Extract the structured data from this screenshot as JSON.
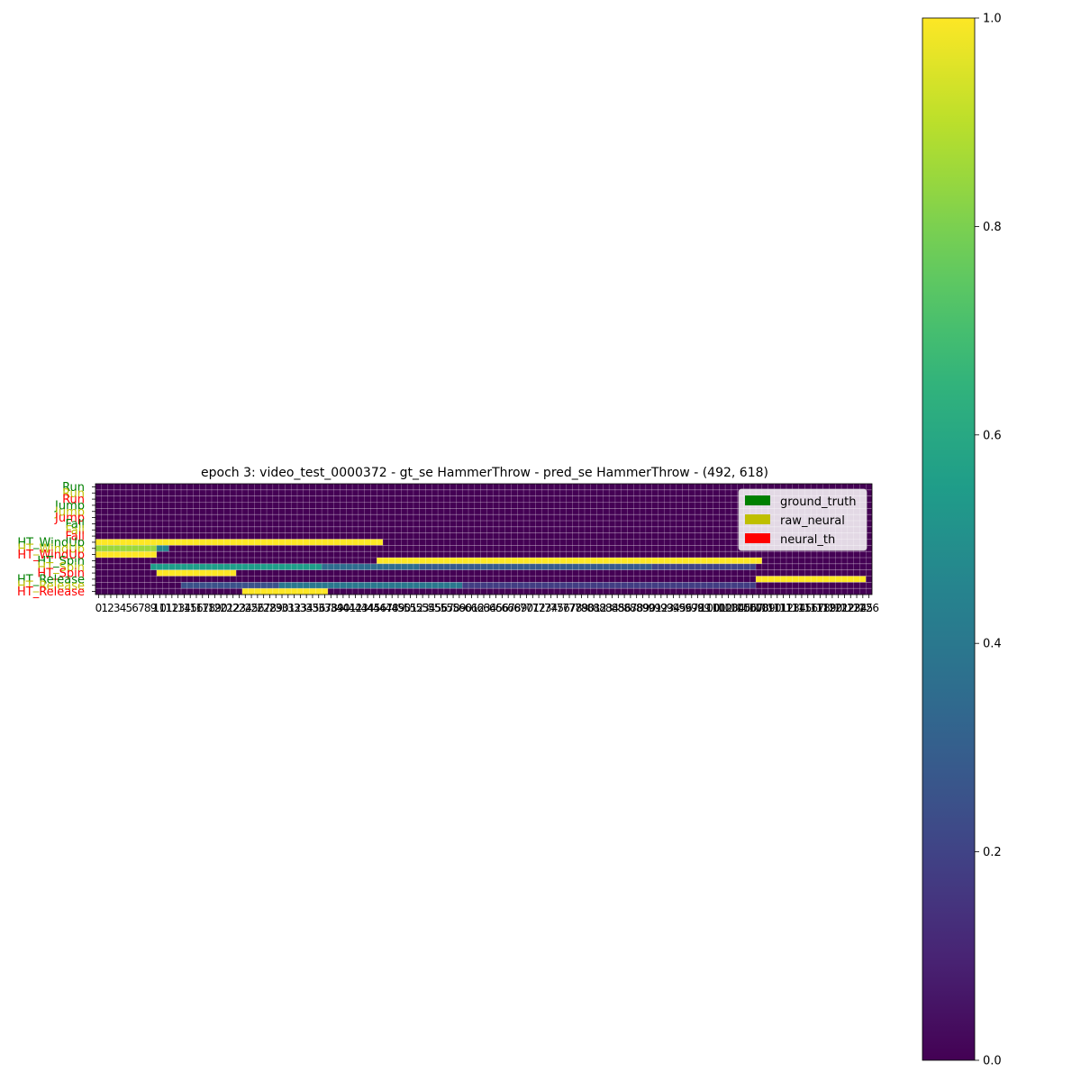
{
  "chart_data": {
    "type": "heatmap",
    "title": "epoch 3: video_test_0000372 - gt_se HammerThrow - pred_se HammerThrow - (492, 618)",
    "xlabel": "",
    "ylabel": "",
    "x_ticks": {
      "start": 0,
      "end": 126,
      "step": 1
    },
    "rows": [
      {
        "label": "Run",
        "source": "ground_truth"
      },
      {
        "label": "Run",
        "source": "raw_neural"
      },
      {
        "label": "Run",
        "source": "neural_th"
      },
      {
        "label": "Jump",
        "source": "ground_truth"
      },
      {
        "label": "Jump",
        "source": "raw_neural"
      },
      {
        "label": "Jump",
        "source": "neural_th"
      },
      {
        "label": "Fall",
        "source": "ground_truth"
      },
      {
        "label": "Fall",
        "source": "raw_neural"
      },
      {
        "label": "Fall",
        "source": "neural_th"
      },
      {
        "label": "HT_WindUp",
        "source": "ground_truth"
      },
      {
        "label": "HT_WindUp",
        "source": "raw_neural"
      },
      {
        "label": "HT_WindUp",
        "source": "neural_th"
      },
      {
        "label": "HT_Spin",
        "source": "ground_truth"
      },
      {
        "label": "HT_Spin",
        "source": "raw_neural"
      },
      {
        "label": "HT_Spin",
        "source": "neural_th"
      },
      {
        "label": "HT_Release",
        "source": "ground_truth"
      },
      {
        "label": "HT_Release",
        "source": "raw_neural"
      },
      {
        "label": "HT_Release",
        "source": "neural_th"
      }
    ],
    "segments": [
      {
        "row": 9,
        "from": 0,
        "to": 47,
        "value": 1.0
      },
      {
        "row": 10,
        "from": 0,
        "to": 10,
        "value": 0.85
      },
      {
        "row": 10,
        "from": 10,
        "to": 12,
        "value": 0.45
      },
      {
        "row": 11,
        "from": 0,
        "to": 10,
        "value": 1.0
      },
      {
        "row": 12,
        "from": 46,
        "to": 109,
        "value": 1.0
      },
      {
        "row": 13,
        "from": 9,
        "to": 37,
        "value": 0.55
      },
      {
        "row": 13,
        "from": 37,
        "to": 53,
        "value": 0.35
      },
      {
        "row": 13,
        "from": 53,
        "to": 91,
        "value": 0.28
      },
      {
        "row": 13,
        "from": 91,
        "to": 108,
        "value": 0.2
      },
      {
        "row": 14,
        "from": 10,
        "to": 23,
        "value": 1.0
      },
      {
        "row": 15,
        "from": 108,
        "to": 126,
        "value": 1.0
      },
      {
        "row": 16,
        "from": 14,
        "to": 30,
        "value": 0.25
      },
      {
        "row": 16,
        "from": 30,
        "to": 60,
        "value": 0.4
      },
      {
        "row": 16,
        "from": 60,
        "to": 108,
        "value": 0.18
      },
      {
        "row": 17,
        "from": 24,
        "to": 38,
        "value": 1.0
      }
    ],
    "background_value": 0.0,
    "colorscale": "viridis",
    "colorbar": {
      "min": 0.0,
      "max": 1.0,
      "ticks": [
        "0.0",
        "0.2",
        "0.4",
        "0.6",
        "0.8",
        "1.0"
      ]
    },
    "legend": {
      "placement": "top-right",
      "entries": [
        {
          "label": "ground_truth",
          "color": "#008000"
        },
        {
          "label": "raw_neural",
          "color": "#bfbf00"
        },
        {
          "label": "neural_th",
          "color": "#ff0000"
        }
      ]
    },
    "row_label_colors": {
      "ground_truth": "#008000",
      "raw_neural": "#bfbf00",
      "neural_th": "#ff0000"
    }
  }
}
